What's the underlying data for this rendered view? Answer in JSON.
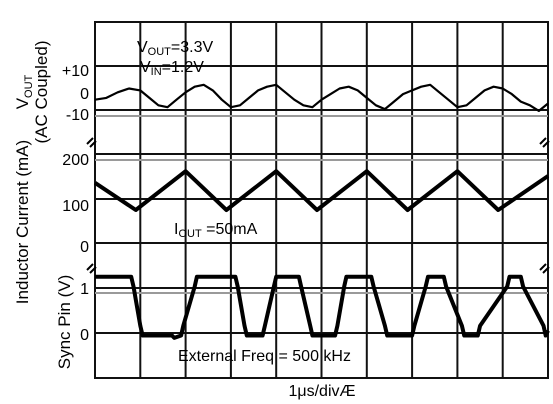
{
  "chart_data": {
    "type": "line",
    "title": "",
    "xlabel": "1μs/divÆ",
    "x_unit": "μs",
    "x_per_div": 1,
    "x_divisions": 10,
    "xlim": [
      0,
      10
    ],
    "grid": true,
    "legend": "none",
    "panels": [
      {
        "id": "vout",
        "ylabel_main": "V",
        "ylabel_sub": "OUT",
        "ylabel_line2": "(AC Coupled)",
        "yticks": [
          "+10",
          "0",
          "-10"
        ],
        "ylim": [
          -15,
          15
        ],
        "annotations": [
          {
            "main": "V",
            "sub": "OUT",
            "rest": "=3.3V"
          },
          {
            "main": "V",
            "sub": "IN",
            "rest": "=1.2V"
          }
        ],
        "series": [
          {
            "x": [
              0,
              0.25,
              0.5,
              0.75,
              1,
              1.2,
              1.4,
              1.6,
              1.8,
              2,
              2.2,
              2.4,
              2.6,
              2.8,
              3,
              3.2,
              3.4,
              3.6,
              3.8,
              4,
              4.2,
              4.4,
              4.6,
              4.8,
              5,
              5.2,
              5.4,
              5.6,
              5.8,
              6,
              6.2,
              6.4,
              6.6,
              6.8,
              7,
              7.2,
              7.4,
              7.6,
              7.8,
              8,
              8.2,
              8.4,
              8.6,
              8.8,
              9,
              9.2,
              9.4,
              9.6,
              9.8,
              10
            ],
            "y": [
              -2,
              -1,
              2,
              4,
              3,
              -1,
              -5,
              -6,
              -2,
              2,
              5,
              6,
              3,
              -2,
              -6,
              -5,
              -1,
              3,
              5,
              6,
              2,
              -2,
              -5,
              -6,
              -2,
              1,
              4,
              5,
              3,
              -1,
              -5,
              -7,
              -3,
              1,
              3,
              5,
              6,
              2,
              -2,
              -6,
              -5,
              -1,
              3,
              5,
              4,
              1,
              -3,
              -5,
              -8,
              -4
            ]
          }
        ]
      },
      {
        "id": "inductor",
        "ylabel": "Inductor Current (mA)",
        "yticks": [
          "200",
          "100",
          "0"
        ],
        "ylim": [
          0,
          250
        ],
        "annotation": {
          "main": "I",
          "sub": "OUT",
          "rest": " =50mA"
        },
        "series": [
          {
            "x": [
              0,
              0.9,
              2,
              2.9,
              4,
              4.9,
              6,
              6.9,
              8,
              8.9,
              10
            ],
            "y": [
              168,
              100,
              197,
              100,
              197,
              100,
              197,
              100,
              197,
              100,
              185
            ]
          }
        ]
      },
      {
        "id": "sync",
        "ylabel": "Sync Pin (V)",
        "yticks": [
          "1",
          "0"
        ],
        "ylim": [
          -0.5,
          1.5
        ],
        "annotation": "External Freq = 500 kHz",
        "series": [
          {
            "x": [
              0,
              0.8,
              0.85,
              1,
              1.05,
              1.7,
              1.75,
              1.9,
              1.95,
              2.2,
              2.25,
              2.45,
              2.5,
              3.1,
              3.15,
              3.3,
              3.35,
              3.7,
              3.75,
              3.95,
              4,
              4.5,
              4.55,
              4.75,
              4.8,
              5.3,
              5.35,
              5.5,
              5.55,
              6.1,
              6.15,
              6.4,
              6.45,
              7,
              7.05,
              7.3,
              7.35,
              7.7,
              7.75,
              8.1,
              8.15,
              8.45,
              8.5,
              9.1,
              9.15,
              9.4,
              9.45,
              9.9,
              9.95,
              10
            ],
            "y": [
              1.2,
              1.2,
              1.0,
              0.2,
              0,
              0,
              -0.05,
              0,
              0.2,
              1.0,
              1.2,
              1.2,
              1.2,
              1.2,
              1.0,
              0.2,
              0,
              0,
              0.2,
              1.0,
              1.2,
              1.2,
              1.0,
              0.2,
              0,
              0,
              0.2,
              1.0,
              1.2,
              1.2,
              1.0,
              0.2,
              0,
              0,
              0.2,
              1.0,
              1.2,
              1.2,
              1.0,
              0.2,
              0,
              0,
              0.2,
              1.0,
              1.2,
              1.2,
              1.0,
              0.2,
              0,
              0.1
            ]
          }
        ]
      }
    ]
  }
}
